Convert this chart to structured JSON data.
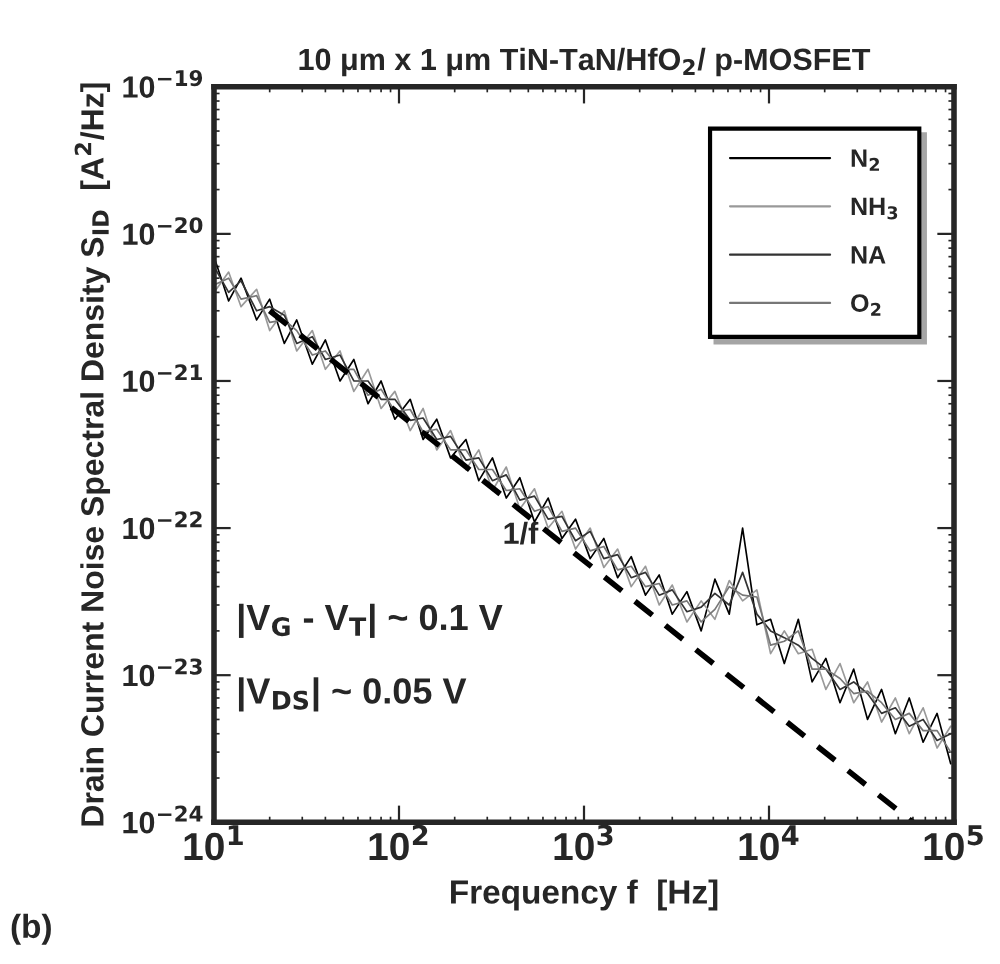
{
  "chart_data": {
    "type": "line",
    "title": "10 μm x 1 μm TiN-TaN/HfO$_{2}$/ p-MOSFET",
    "xlabel": "Frequency f  [Hz]",
    "ylabel": "Drain Current Noise Spectral Density S$_{ID}$  [A$^{2}$/Hz]",
    "x": [
      10,
      12,
      14,
      17,
      20,
      24,
      28,
      34,
      40,
      48,
      57,
      68,
      80,
      95,
      115,
      135,
      160,
      190,
      230,
      270,
      320,
      380,
      450,
      540,
      640,
      760,
      900,
      1080,
      1280,
      1520,
      1800,
      2150,
      2550,
      3000,
      3600,
      4300,
      5100,
      6100,
      7200,
      8600,
      10200,
      12100,
      14400,
      17100,
      20300,
      24200,
      28700,
      34100,
      40600,
      48200,
      57300,
      68100,
      81000,
      96000
    ],
    "series": [
      {
        "name": "N$_{2}$",
        "color": "#000000",
        "values": [
          7e-21,
          3.5e-21,
          5e-21,
          2.6e-21,
          3.6e-21,
          1.8e-21,
          2.6e-21,
          1.3e-21,
          1.9e-21,
          1e-21,
          1.4e-21,
          7e-22,
          1e-21,
          5.5e-22,
          7.5e-22,
          4e-22,
          5.5e-22,
          3e-22,
          4e-22,
          2.1e-22,
          3e-22,
          1.6e-22,
          2.2e-22,
          1.1e-22,
          1.6e-22,
          8.5e-23,
          1.15e-22,
          6.2e-23,
          8.5e-23,
          4.6e-23,
          6.4e-23,
          3.5e-23,
          4.8e-23,
          2.6e-23,
          3.7e-23,
          2e-23,
          4.5e-23,
          2.6e-23,
          1e-22,
          2.2e-23,
          2.4e-23,
          1.2e-23,
          2.4e-23,
          9e-24,
          1.3e-23,
          6.5e-24,
          1.1e-23,
          5e-24,
          8e-24,
          4e-24,
          7e-24,
          3.5e-24,
          5.5e-24,
          2.5e-24
        ]
      },
      {
        "name": "NH$_{3}$",
        "color": "#999999",
        "values": [
          4e-21,
          5.5e-21,
          3.2e-21,
          4.2e-21,
          2.2e-21,
          3e-21,
          1.6e-21,
          2.2e-21,
          1.2e-21,
          1.6e-21,
          8.5e-22,
          1.2e-21,
          6.5e-22,
          8.5e-22,
          4.6e-22,
          6.5e-22,
          3.4e-22,
          4.6e-22,
          2.5e-22,
          3.4e-22,
          1.8e-22,
          2.6e-22,
          1.35e-22,
          1.85e-22,
          1e-22,
          1.3e-22,
          7.2e-23,
          1e-22,
          5.4e-23,
          7.2e-23,
          4e-23,
          5.5e-23,
          3e-23,
          4.1e-23,
          2.3e-23,
          3.2e-23,
          2.4e-23,
          4.4e-23,
          3.2e-23,
          3.8e-23,
          1.4e-23,
          2e-23,
          1.4e-23,
          1.5e-23,
          8e-24,
          1.2e-23,
          6.5e-24,
          9e-24,
          4.8e-24,
          7e-24,
          4e-24,
          6e-24,
          3.2e-24,
          4.5e-24
        ]
      },
      {
        "name": "NA",
        "color": "#333333",
        "values": [
          6e-21,
          4e-21,
          4.8e-21,
          3e-21,
          3.2e-21,
          2.8e-21,
          1.8e-21,
          2e-21,
          1.4e-21,
          1.5e-21,
          1e-21,
          1e-21,
          7.5e-22,
          7.5e-22,
          5.4e-22,
          5.6e-22,
          4e-22,
          4.2e-22,
          2.9e-22,
          3e-22,
          2.1e-22,
          2.3e-22,
          1.55e-22,
          1.65e-22,
          1.15e-22,
          1.2e-22,
          8.2e-23,
          9.5e-23,
          6.2e-23,
          6.6e-23,
          4.6e-23,
          5e-23,
          3.5e-23,
          3.8e-23,
          2.7e-23,
          2.9e-23,
          3.6e-23,
          3e-23,
          5e-23,
          2.6e-23,
          2e-23,
          1.8e-23,
          1.6e-23,
          1.3e-23,
          1.1e-23,
          8e-24,
          9e-24,
          7.5e-24,
          5.5e-24,
          6e-24,
          4.5e-24,
          5e-24,
          3.6e-24,
          4e-24
        ]
      },
      {
        "name": "O$_{2}$",
        "color": "#777777",
        "values": [
          4.5e-21,
          5e-21,
          3.6e-21,
          3.8e-21,
          2.5e-21,
          2.6e-21,
          2.2e-21,
          1.5e-21,
          1.6e-21,
          1.2e-21,
          1.2e-21,
          8e-22,
          8.8e-22,
          6.2e-22,
          6.4e-22,
          4.5e-22,
          4.7e-22,
          3.4e-22,
          3.4e-22,
          2.5e-22,
          2.5e-22,
          1.8e-22,
          1.85e-22,
          1.3e-22,
          1.4e-22,
          9.5e-23,
          1e-22,
          7e-23,
          7.5e-23,
          5.2e-23,
          5.5e-23,
          4e-23,
          4.2e-23,
          3e-23,
          3.2e-23,
          2.3e-23,
          2.8e-23,
          4e-23,
          3.5e-23,
          3.4e-23,
          1.6e-23,
          1.7e-23,
          2e-23,
          1.1e-23,
          1.1e-23,
          9.5e-24,
          7.5e-24,
          7.8e-24,
          6.5e-24,
          5e-24,
          5.5e-24,
          4.2e-24,
          4.2e-24,
          3e-24
        ]
      },
      {
        "color": "#000000",
        "line_style": "dashed",
        "x": [
          20,
          60000
        ],
        "values": [
          3e-21,
          1e-24
        ]
      }
    ],
    "log": "xy",
    "xlim": [
      10,
      100000
    ],
    "ylim": [
      1e-24,
      1e-19
    ],
    "xticks": [
      {
        "value": 10,
        "label": "10$^{1}$"
      },
      {
        "value": 100,
        "label": "10$^{2}$"
      },
      {
        "value": 1000,
        "label": "10$^{3}$"
      },
      {
        "value": 10000,
        "label": "10$^{4}$"
      },
      {
        "value": 100000,
        "label": "10$^{5}$"
      }
    ],
    "yticks": [
      {
        "value": 1e-24,
        "label": "10$^{−24}$"
      },
      {
        "value": 1e-23,
        "label": "10$^{−23}$"
      },
      {
        "value": 1e-22,
        "label": "10$^{−22}$"
      },
      {
        "value": 1e-21,
        "label": "10$^{−21}$"
      },
      {
        "value": 1e-20,
        "label": "10$^{−20}$"
      },
      {
        "value": 1e-19,
        "label": "10$^{−19}$"
      }
    ],
    "annotations": [
      "1/f",
      "|V$_{G}$ - V$_{T}$| ~ 0.1 V",
      "|V$_{DS}$| ~ 0.05 V",
      "(b)"
    ],
    "legend": "top right",
    "grid": false
  }
}
